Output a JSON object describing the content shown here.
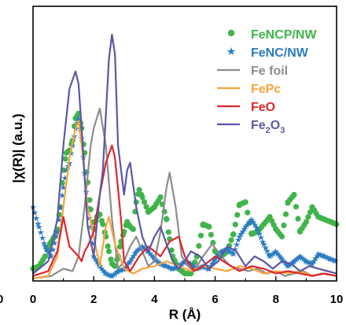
{
  "chart_data": {
    "type": "line",
    "xlabel": "R (Å)",
    "ylabel": "|χ(R)| (a.u.)",
    "xlim": [
      0,
      10
    ],
    "ylim": [
      0,
      1
    ],
    "y_ticks_shown": false,
    "x_ticks": [
      "0",
      "2",
      "4",
      "6",
      "8",
      "10"
    ],
    "clipped_left_tick": "0",
    "grid": false,
    "legend_position": "top-right",
    "series": [
      {
        "name": "FeNCP/NW",
        "name_base": "FeNCP/NW",
        "name_sub": "",
        "name_tail": "",
        "color": "#3fb44a",
        "style": "scatter",
        "marker": "circle",
        "x": [
          0,
          0.2,
          0.4,
          0.5,
          0.6,
          0.7,
          0.8,
          0.9,
          1.0,
          1.1,
          1.2,
          1.3,
          1.4,
          1.5,
          1.6,
          1.7,
          1.8,
          1.9,
          2.0,
          2.1,
          2.2,
          2.3,
          2.4,
          2.5,
          2.6,
          2.7,
          2.8,
          2.9,
          3.0,
          3.1,
          3.2,
          3.3,
          3.4,
          3.5,
          3.6,
          3.8,
          4.0,
          4.2,
          4.4,
          4.5,
          4.6,
          4.8,
          5.0,
          5.2,
          5.4,
          5.6,
          5.8,
          6.0,
          6.2,
          6.4,
          6.6,
          6.8,
          7.0,
          7.2,
          7.4,
          7.6,
          7.8,
          8.0,
          8.2,
          8.4,
          8.6,
          8.8,
          9.0,
          9.2,
          9.4,
          9.6,
          9.8,
          10.0
        ],
        "y": [
          0.05,
          0.06,
          0.1,
          0.14,
          0.16,
          0.18,
          0.21,
          0.3,
          0.45,
          0.52,
          0.53,
          0.57,
          0.66,
          0.68,
          0.62,
          0.52,
          0.4,
          0.29,
          0.21,
          0.26,
          0.27,
          0.23,
          0.18,
          0.12,
          0.07,
          0.06,
          0.1,
          0.16,
          0.2,
          0.24,
          0.22,
          0.21,
          0.32,
          0.37,
          0.34,
          0.28,
          0.3,
          0.34,
          0.25,
          0.17,
          0.1,
          0.05,
          0.03,
          0.03,
          0.1,
          0.23,
          0.22,
          0.12,
          0.1,
          0.12,
          0.19,
          0.31,
          0.32,
          0.19,
          0.2,
          0.23,
          0.26,
          0.21,
          0.18,
          0.32,
          0.35,
          0.2,
          0.24,
          0.3,
          0.26,
          0.25,
          0.24,
          0.23
        ]
      },
      {
        "name": "FeNC/NW",
        "name_base": "FeNC/NW",
        "name_sub": "",
        "name_tail": "",
        "color": "#2b7bc4",
        "style": "scatter",
        "marker": "star",
        "x": [
          0,
          0.2,
          0.4,
          0.6,
          0.8,
          1.0,
          1.1,
          1.2,
          1.3,
          1.4,
          1.5,
          1.6,
          1.7,
          1.8,
          1.9,
          2.0,
          2.2,
          2.4,
          2.6,
          2.8,
          3.0,
          3.2,
          3.4,
          3.6,
          3.8,
          4.0,
          4.2,
          4.4,
          4.6,
          4.8,
          5.0,
          5.2,
          5.4,
          5.6,
          5.8,
          6.0,
          6.2,
          6.4,
          6.6,
          6.8,
          7.0,
          7.2,
          7.4,
          7.6,
          7.8,
          8.0,
          8.2,
          8.4,
          8.6,
          8.8,
          9.0,
          9.2,
          9.4,
          9.6,
          9.8,
          10.0
        ],
        "y": [
          0.3,
          0.22,
          0.14,
          0.1,
          0.2,
          0.38,
          0.45,
          0.48,
          0.55,
          0.62,
          0.66,
          0.58,
          0.44,
          0.3,
          0.22,
          0.1,
          0.06,
          0.03,
          0.02,
          0.04,
          0.05,
          0.08,
          0.12,
          0.14,
          0.12,
          0.09,
          0.07,
          0.06,
          0.05,
          0.06,
          0.08,
          0.07,
          0.05,
          0.06,
          0.05,
          0.09,
          0.12,
          0.13,
          0.11,
          0.18,
          0.22,
          0.25,
          0.21,
          0.15,
          0.1,
          0.12,
          0.09,
          0.06,
          0.08,
          0.1,
          0.08,
          0.07,
          0.11,
          0.1,
          0.09,
          0.08
        ]
      },
      {
        "name": "Fe foil",
        "name_base": "Fe foil",
        "name_sub": "",
        "name_tail": "",
        "color": "#8c8c8c",
        "style": "line",
        "x": [
          0,
          0.6,
          1.0,
          1.3,
          1.5,
          1.7,
          1.9,
          2.0,
          2.2,
          2.4,
          2.6,
          2.8,
          3.0,
          3.2,
          3.4,
          3.6,
          3.8,
          4.0,
          4.2,
          4.4,
          4.5,
          4.7,
          4.9,
          5.1,
          5.3,
          5.6,
          5.9,
          6.2,
          6.5,
          6.8,
          7.1,
          7.4,
          7.7,
          8.0,
          8.3,
          8.6,
          8.9,
          9.2,
          9.5,
          10.0
        ],
        "y": [
          0.01,
          0.02,
          0.05,
          0.04,
          0.1,
          0.3,
          0.55,
          0.62,
          0.7,
          0.55,
          0.25,
          0.05,
          0.08,
          0.14,
          0.18,
          0.12,
          0.06,
          0.08,
          0.2,
          0.38,
          0.44,
          0.3,
          0.1,
          0.06,
          0.04,
          0.1,
          0.15,
          0.1,
          0.06,
          0.05,
          0.04,
          0.05,
          0.03,
          0.04,
          0.02,
          0.03,
          0.04,
          0.02,
          0.03,
          0.02
        ]
      },
      {
        "name": "FePc",
        "name_base": "FePc",
        "name_sub": "",
        "name_tail": "",
        "color": "#f7a43c",
        "style": "line",
        "x": [
          0,
          0.5,
          0.8,
          1.0,
          1.2,
          1.4,
          1.5,
          1.6,
          1.8,
          2.0,
          2.2,
          2.4,
          2.5,
          2.7,
          3.0,
          3.3,
          3.6,
          4.0,
          4.4,
          4.8,
          5.2,
          5.6,
          6.0,
          6.4,
          6.8,
          7.2,
          7.6,
          8.0,
          8.4,
          8.8,
          9.2,
          9.6,
          10.0
        ],
        "y": [
          0.01,
          0.02,
          0.1,
          0.3,
          0.5,
          0.62,
          0.65,
          0.55,
          0.3,
          0.18,
          0.06,
          0.22,
          0.26,
          0.15,
          0.05,
          0.03,
          0.05,
          0.06,
          0.08,
          0.06,
          0.04,
          0.06,
          0.05,
          0.04,
          0.06,
          0.05,
          0.03,
          0.04,
          0.03,
          0.04,
          0.02,
          0.03,
          0.02
        ]
      },
      {
        "name": "FeO",
        "name_base": "FeO",
        "name_sub": "",
        "name_tail": "",
        "color": "#e0262b",
        "style": "line",
        "x": [
          0,
          0.5,
          0.8,
          1.0,
          1.2,
          1.5,
          1.6,
          1.7,
          1.8,
          2.0,
          2.2,
          2.4,
          2.6,
          2.7,
          2.9,
          3.0,
          3.2,
          3.5,
          3.8,
          4.0,
          4.2,
          4.5,
          4.8,
          5.0,
          5.3,
          5.6,
          6.0,
          6.4,
          6.8,
          7.2,
          7.6,
          8.0,
          8.4,
          8.8,
          9.2,
          9.6,
          10.0
        ],
        "y": [
          0.02,
          0.04,
          0.12,
          0.26,
          0.14,
          0.1,
          0.08,
          0.12,
          0.14,
          0.2,
          0.35,
          0.48,
          0.55,
          0.5,
          0.25,
          0.08,
          0.04,
          0.1,
          0.14,
          0.12,
          0.1,
          0.16,
          0.18,
          0.1,
          0.04,
          0.06,
          0.1,
          0.07,
          0.04,
          0.06,
          0.05,
          0.03,
          0.04,
          0.03,
          0.02,
          0.03,
          0.02
        ]
      },
      {
        "name": "Fe2O3",
        "name_base": "Fe",
        "name_sub": "2",
        "name_tail": "O",
        "name_tail_sub": "3",
        "color": "#5a57a8",
        "style": "line",
        "x": [
          0,
          0.5,
          0.8,
          1.0,
          1.2,
          1.4,
          1.5,
          1.6,
          1.8,
          2.0,
          2.2,
          2.3,
          2.5,
          2.6,
          2.7,
          2.8,
          3.0,
          3.1,
          3.2,
          3.4,
          3.6,
          3.8,
          4.0,
          4.2,
          4.4,
          4.6,
          4.8,
          5.0,
          5.2,
          5.5,
          5.8,
          6.1,
          6.4,
          6.7,
          7.0,
          7.3,
          7.6,
          7.9,
          8.2,
          8.5,
          8.8,
          9.1,
          9.4,
          9.7,
          10.0
        ],
        "y": [
          0.03,
          0.08,
          0.25,
          0.55,
          0.78,
          0.85,
          0.8,
          0.62,
          0.22,
          0.1,
          0.35,
          0.45,
          0.9,
          1.0,
          0.92,
          0.55,
          0.35,
          0.45,
          0.48,
          0.3,
          0.18,
          0.12,
          0.18,
          0.22,
          0.15,
          0.08,
          0.05,
          0.08,
          0.12,
          0.1,
          0.05,
          0.08,
          0.14,
          0.12,
          0.06,
          0.1,
          0.08,
          0.05,
          0.08,
          0.07,
          0.04,
          0.06,
          0.05,
          0.04,
          0.03
        ]
      }
    ]
  }
}
